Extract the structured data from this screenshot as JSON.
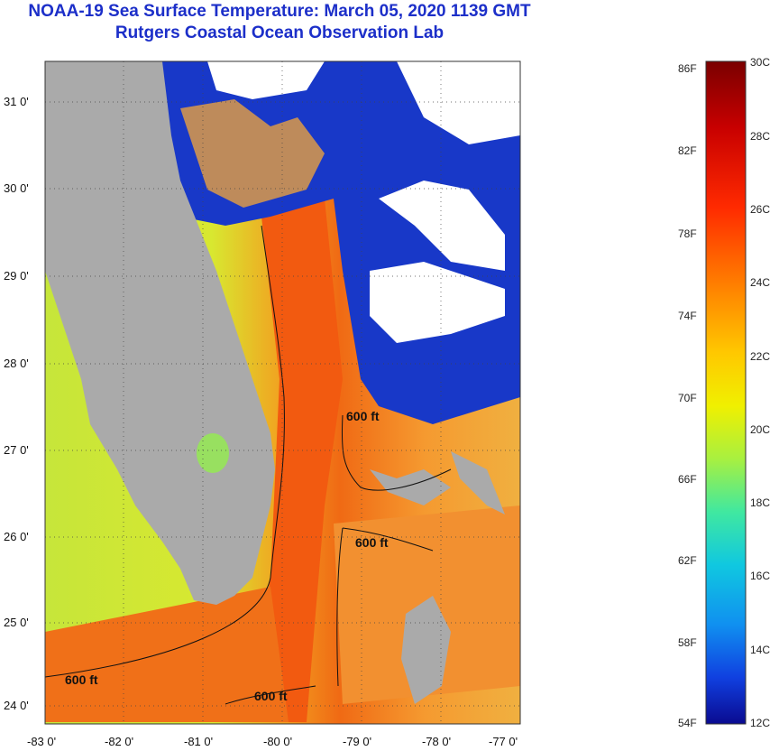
{
  "header": {
    "title": "NOAA-19 Sea Surface Temperature:  March 05, 2020 1139 GMT",
    "subtitle": "Rutgers Coastal Ocean Observation Lab"
  },
  "map": {
    "lat_labels": [
      "31 0'",
      "30 0'",
      "29 0'",
      "28 0'",
      "27 0'",
      "26 0'",
      "25 0'",
      "24 0'"
    ],
    "lon_labels": [
      "-83 0'",
      "-82 0'",
      "-81 0'",
      "-80 0'",
      "-79 0'",
      "-78 0'",
      "-77 0'"
    ],
    "contour_labels": [
      "600 ft",
      "600 ft",
      "600 ft",
      "600 ft"
    ],
    "colors": {
      "land": "#aaaaaa",
      "cloud": "#ffffff",
      "warm_water": "#f06a14",
      "cool_water": "#c8e83a",
      "cold": "#1028c8"
    }
  },
  "colorbar": {
    "fahrenheit_labels": [
      "86F",
      "82F",
      "78F",
      "74F",
      "70F",
      "66F",
      "62F",
      "58F",
      "54F"
    ],
    "celsius_labels": [
      "30C",
      "28C",
      "26C",
      "24C",
      "22C",
      "20C",
      "18C",
      "16C",
      "14C",
      "12C"
    ],
    "range_f": [
      54,
      86
    ],
    "range_c": [
      12,
      30
    ]
  }
}
